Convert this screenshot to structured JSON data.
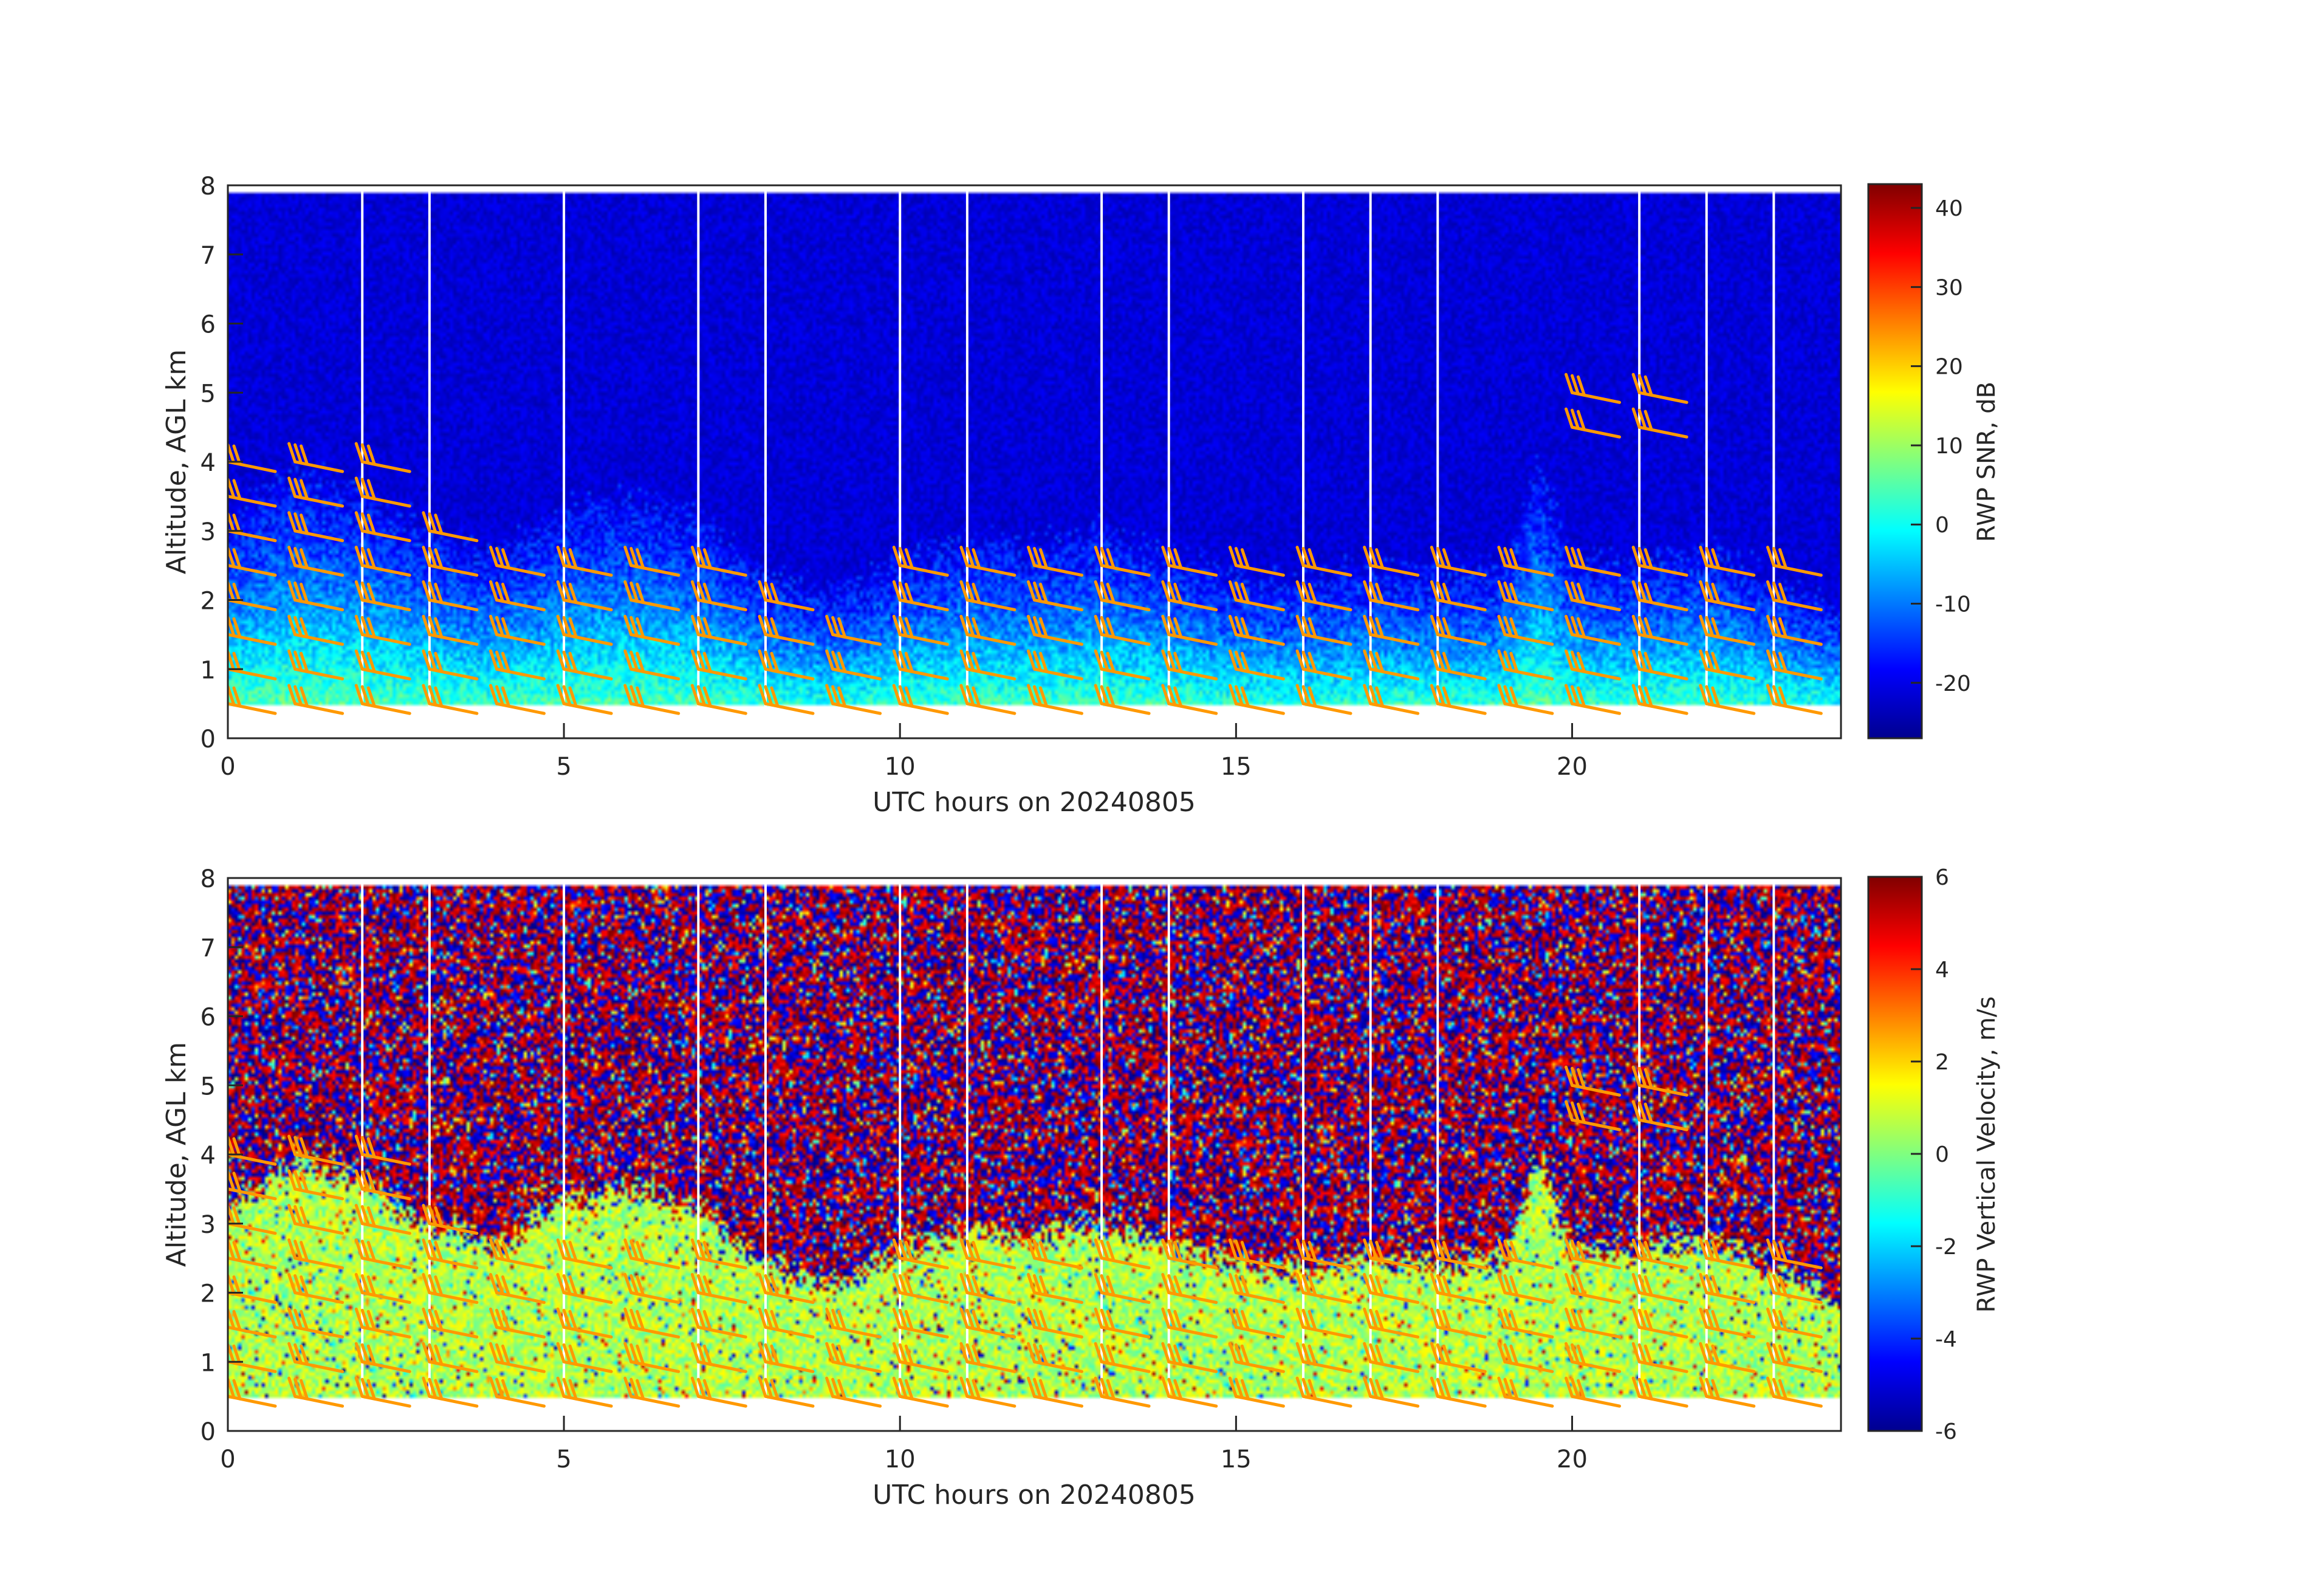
{
  "figure": {
    "background": "#ffffff",
    "barb_color": "#ff9900",
    "gap_color": "#ffffff"
  },
  "chart_data": [
    {
      "type": "heatmap",
      "title": "",
      "xlabel": "UTC hours on 20240805",
      "ylabel": "Altitude, AGL km",
      "xlim": [
        0,
        24
      ],
      "ylim": [
        0,
        8
      ],
      "xticks": [
        0,
        5,
        10,
        15,
        20
      ],
      "xtick_labels": [
        "0",
        "5",
        "10",
        "15",
        "20"
      ],
      "yticks": [
        0,
        1,
        2,
        3,
        4,
        5,
        6,
        7,
        8
      ],
      "ytick_labels": [
        "0",
        "1",
        "2",
        "3",
        "4",
        "5",
        "6",
        "7",
        "8"
      ],
      "colorbar": {
        "label": "RWP SNR, dB",
        "range": [
          -27,
          43
        ],
        "ticks": [
          -20,
          -10,
          0,
          10,
          20,
          30,
          40
        ],
        "tick_labels": [
          "-20",
          "-10",
          "0",
          "10",
          "20",
          "30",
          "40"
        ],
        "colormap": "jet"
      },
      "field": "snr",
      "data_top_km": 7.9,
      "data_bottom_km": 0.5,
      "cloud_top_profile": {
        "hours": [
          0,
          1,
          2,
          3,
          4,
          5,
          6,
          7,
          8,
          9,
          10,
          11,
          12,
          13,
          14,
          15,
          16,
          17,
          18,
          19,
          19.5,
          20,
          21,
          22,
          23,
          24
        ],
        "km": [
          3.2,
          3.9,
          3.6,
          3.0,
          2.7,
          3.3,
          3.5,
          3.2,
          2.4,
          2.1,
          2.6,
          2.9,
          2.8,
          3.0,
          2.7,
          2.4,
          2.3,
          2.5,
          2.4,
          2.5,
          4.0,
          2.6,
          2.6,
          2.8,
          2.3,
          1.9
        ]
      },
      "grid": false,
      "legend": "none"
    },
    {
      "type": "heatmap",
      "title": "",
      "xlabel": "UTC hours on 20240805",
      "ylabel": "Altitude, AGL km",
      "xlim": [
        0,
        24
      ],
      "ylim": [
        0,
        8
      ],
      "xticks": [
        0,
        5,
        10,
        15,
        20
      ],
      "xtick_labels": [
        "0",
        "5",
        "10",
        "15",
        "20"
      ],
      "yticks": [
        0,
        1,
        2,
        3,
        4,
        5,
        6,
        7,
        8
      ],
      "ytick_labels": [
        "0",
        "1",
        "2",
        "3",
        "4",
        "5",
        "6",
        "7",
        "8"
      ],
      "colorbar": {
        "label": "RWP Vertical Velocity, m/s",
        "range": [
          -6,
          6
        ],
        "ticks": [
          -6,
          -4,
          -2,
          0,
          2,
          4,
          6
        ],
        "tick_labels": [
          "-6",
          "-4",
          "-2",
          "0",
          "2",
          "4",
          "6"
        ],
        "colormap": "jet"
      },
      "field": "vertical_velocity",
      "data_top_km": 7.9,
      "data_bottom_km": 0.5,
      "grid": false,
      "legend": "none"
    }
  ],
  "wind_barbs": {
    "hours": [
      0,
      1,
      2,
      3,
      4,
      5,
      6,
      7,
      8,
      9,
      10,
      11,
      12,
      13,
      14,
      15,
      16,
      17,
      18,
      19,
      20,
      21,
      22,
      23
    ],
    "levels_km": [
      0.5,
      1.0,
      1.5,
      2.0,
      2.5,
      3.0,
      3.5,
      4.0
    ],
    "level_counts": [
      8,
      8,
      8,
      6,
      5,
      5,
      5,
      5,
      4,
      3,
      5,
      5,
      5,
      5,
      5,
      5,
      5,
      5,
      5,
      5,
      5,
      5,
      5,
      5
    ],
    "upper_barbs": {
      "hours": [
        20,
        21
      ],
      "levels_km": [
        4.5,
        5.0
      ]
    }
  },
  "missing_columns_hours": [
    2,
    3,
    5,
    7,
    8,
    10,
    11,
    13,
    14,
    16,
    17,
    18,
    21,
    22,
    23
  ]
}
